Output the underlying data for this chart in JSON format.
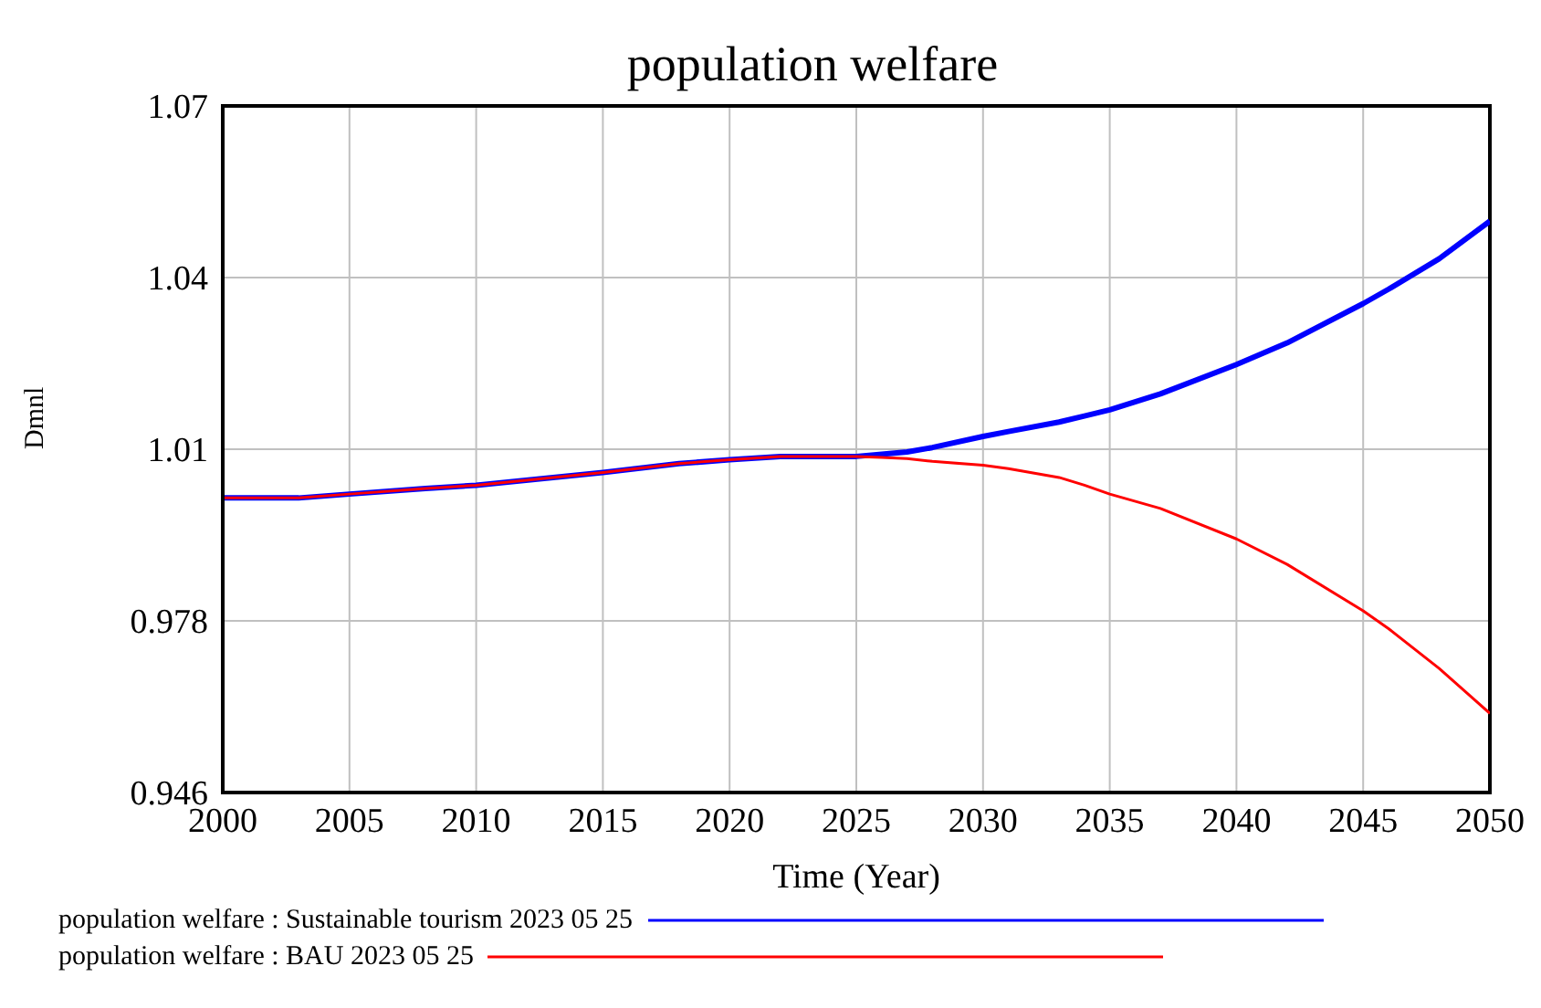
{
  "chart_data": {
    "type": "line",
    "title": "population welfare",
    "xlabel": "Time (Year)",
    "ylabel": "Dmnl",
    "x": [
      2000,
      2003,
      2005,
      2008,
      2010,
      2015,
      2018,
      2020,
      2022,
      2025,
      2026,
      2027,
      2028,
      2030,
      2031,
      2033,
      2034,
      2035,
      2037,
      2040,
      2042,
      2045,
      2046,
      2048,
      2050
    ],
    "series": [
      {
        "name": "population welfare : Sustainable tourism 2023 05 25",
        "color": "#0000ff",
        "values": [
          0.9997,
          0.9997,
          1.0004,
          1.0014,
          1.002,
          1.0043,
          1.0059,
          1.0066,
          1.0072,
          1.0072,
          1.0076,
          1.008,
          1.0088,
          1.0108,
          1.0117,
          1.0134,
          1.0145,
          1.0156,
          1.0185,
          1.0238,
          1.0277,
          1.0348,
          1.0374,
          1.0429,
          1.0497
        ]
      },
      {
        "name": "population welfare : BAU 2023 05 25",
        "color": "#ff0000",
        "values": [
          0.9997,
          0.9997,
          1.0004,
          1.0014,
          1.002,
          1.0043,
          1.0059,
          1.0066,
          1.0072,
          1.0072,
          1.007,
          1.0068,
          1.0063,
          1.0056,
          1.005,
          1.0034,
          1.002,
          1.0004,
          0.9978,
          0.9923,
          0.9877,
          0.9793,
          0.9761,
          0.9689,
          0.9608
        ]
      }
    ],
    "xlim": [
      2000,
      2050
    ],
    "xticks": [
      2000,
      2005,
      2010,
      2015,
      2020,
      2025,
      2030,
      2035,
      2040,
      2045,
      2050
    ],
    "ylim": [
      0.9465,
      1.0705
    ],
    "yticks": [
      {
        "value": 0.9465,
        "label": "0.946"
      },
      {
        "value": 0.9775,
        "label": "0.978"
      },
      {
        "value": 1.0085,
        "label": "1.01"
      },
      {
        "value": 1.0395,
        "label": "1.04"
      },
      {
        "value": 1.0705,
        "label": "1.07"
      }
    ],
    "grid": true,
    "legend": "bottom",
    "marker": "none",
    "line_style": "solid"
  }
}
